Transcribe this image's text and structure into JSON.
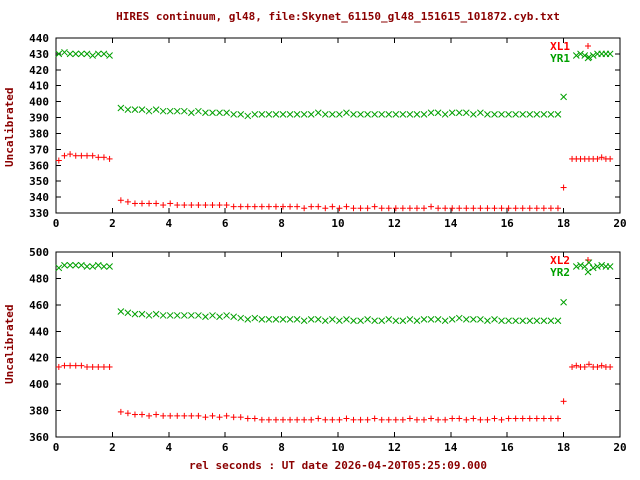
{
  "colors": {
    "background": "#ffffff",
    "text": "#8b0000",
    "tick_text": "#000000",
    "border": "#000000",
    "series_red": "#ff0000",
    "series_green": "#00a000"
  },
  "chart_data": [
    {
      "type": "scatter",
      "title": "HIRES continuum, gl48, file:Skynet_61150_gl48_151615_101872.cyb.txt",
      "ylabel": "Uncalibrated",
      "xlabel": "",
      "xlim": [
        0,
        20
      ],
      "ylim": [
        330,
        440
      ],
      "xticks": [
        0,
        2,
        4,
        6,
        8,
        10,
        12,
        14,
        16,
        18,
        20
      ],
      "yticks": [
        330,
        340,
        350,
        360,
        370,
        380,
        390,
        400,
        410,
        420,
        430,
        440
      ],
      "grid": false,
      "legend_position": "top-right",
      "series": [
        {
          "name": "XL1",
          "marker": "plus",
          "color": "#ff0000",
          "x": [
            0.1,
            0.3,
            0.5,
            0.7,
            0.9,
            1.1,
            1.3,
            1.5,
            1.7,
            1.9,
            2.3,
            2.55,
            2.8,
            3.05,
            3.3,
            3.55,
            3.8,
            4.05,
            4.3,
            4.55,
            4.8,
            5.05,
            5.3,
            5.55,
            5.8,
            6.05,
            6.3,
            6.55,
            6.8,
            7.05,
            7.3,
            7.55,
            7.8,
            8.05,
            8.3,
            8.55,
            8.8,
            9.05,
            9.3,
            9.55,
            9.8,
            10.05,
            10.3,
            10.55,
            10.8,
            11.05,
            11.3,
            11.55,
            11.8,
            12.05,
            12.3,
            12.55,
            12.8,
            13.05,
            13.3,
            13.55,
            13.8,
            14.05,
            14.3,
            14.55,
            14.8,
            15.05,
            15.3,
            15.55,
            15.8,
            16.05,
            16.3,
            16.55,
            16.8,
            17.05,
            17.3,
            17.55,
            17.8,
            18.0,
            18.3,
            18.45,
            18.6,
            18.75,
            18.9,
            19.05,
            19.2,
            19.35,
            19.5,
            19.65
          ],
          "y": [
            363,
            366,
            367,
            366,
            366,
            366,
            366,
            365,
            365,
            364,
            338,
            337,
            336,
            336,
            336,
            336,
            335,
            336,
            335,
            335,
            335,
            335,
            335,
            335,
            335,
            335,
            334,
            334,
            334,
            334,
            334,
            334,
            334,
            334,
            334,
            334,
            333,
            334,
            334,
            333,
            334,
            333,
            334,
            333,
            333,
            333,
            334,
            333,
            333,
            333,
            333,
            333,
            333,
            333,
            334,
            333,
            333,
            333,
            333,
            333,
            333,
            333,
            333,
            333,
            333,
            333,
            333,
            333,
            333,
            333,
            333,
            333,
            333,
            346,
            364,
            364,
            364,
            364,
            364,
            364,
            364,
            365,
            364,
            364
          ]
        },
        {
          "name": "YR1",
          "marker": "cross",
          "color": "#00a000",
          "x": [
            0.1,
            0.3,
            0.5,
            0.7,
            0.9,
            1.1,
            1.3,
            1.5,
            1.7,
            1.9,
            2.3,
            2.55,
            2.8,
            3.05,
            3.3,
            3.55,
            3.8,
            4.05,
            4.3,
            4.55,
            4.8,
            5.05,
            5.3,
            5.55,
            5.8,
            6.05,
            6.3,
            6.55,
            6.8,
            7.05,
            7.3,
            7.55,
            7.8,
            8.05,
            8.3,
            8.55,
            8.8,
            9.05,
            9.3,
            9.55,
            9.8,
            10.05,
            10.3,
            10.55,
            10.8,
            11.05,
            11.3,
            11.55,
            11.8,
            12.05,
            12.3,
            12.55,
            12.8,
            13.05,
            13.3,
            13.55,
            13.8,
            14.05,
            14.3,
            14.55,
            14.8,
            15.05,
            15.3,
            15.55,
            15.8,
            16.05,
            16.3,
            16.55,
            16.8,
            17.05,
            17.3,
            17.55,
            17.8,
            18.0,
            18.45,
            18.6,
            18.75,
            18.9,
            19.05,
            19.2,
            19.35,
            19.5,
            19.65
          ],
          "y": [
            430,
            431,
            430,
            430,
            430,
            430,
            429,
            430,
            430,
            429,
            396,
            395,
            395,
            395,
            394,
            395,
            394,
            394,
            394,
            394,
            393,
            394,
            393,
            393,
            393,
            393,
            392,
            392,
            391,
            392,
            392,
            392,
            392,
            392,
            392,
            392,
            392,
            392,
            393,
            392,
            392,
            392,
            393,
            392,
            392,
            392,
            392,
            392,
            392,
            392,
            392,
            392,
            392,
            392,
            393,
            393,
            392,
            393,
            393,
            393,
            392,
            393,
            392,
            392,
            392,
            392,
            392,
            392,
            392,
            392,
            392,
            392,
            392,
            403,
            429,
            430,
            429,
            428,
            429,
            430,
            430,
            430,
            430
          ]
        }
      ]
    },
    {
      "type": "scatter",
      "title": "",
      "ylabel": "Uncalibrated",
      "xlabel": "rel seconds : UT date 2026-04-20T05:25:09.000",
      "xlim": [
        0,
        20
      ],
      "ylim": [
        360,
        500
      ],
      "xticks": [
        0,
        2,
        4,
        6,
        8,
        10,
        12,
        14,
        16,
        18,
        20
      ],
      "yticks": [
        360,
        380,
        400,
        420,
        440,
        460,
        480,
        500
      ],
      "grid": false,
      "legend_position": "top-right",
      "series": [
        {
          "name": "XL2",
          "marker": "plus",
          "color": "#ff0000",
          "x": [
            0.1,
            0.3,
            0.5,
            0.7,
            0.9,
            1.1,
            1.3,
            1.5,
            1.7,
            1.9,
            2.3,
            2.55,
            2.8,
            3.05,
            3.3,
            3.55,
            3.8,
            4.05,
            4.3,
            4.55,
            4.8,
            5.05,
            5.3,
            5.55,
            5.8,
            6.05,
            6.3,
            6.55,
            6.8,
            7.05,
            7.3,
            7.55,
            7.8,
            8.05,
            8.3,
            8.55,
            8.8,
            9.05,
            9.3,
            9.55,
            9.8,
            10.05,
            10.3,
            10.55,
            10.8,
            11.05,
            11.3,
            11.55,
            11.8,
            12.05,
            12.3,
            12.55,
            12.8,
            13.05,
            13.3,
            13.55,
            13.8,
            14.05,
            14.3,
            14.55,
            14.8,
            15.05,
            15.3,
            15.55,
            15.8,
            16.05,
            16.3,
            16.55,
            16.8,
            17.05,
            17.3,
            17.55,
            17.8,
            18.0,
            18.3,
            18.45,
            18.6,
            18.75,
            18.9,
            19.05,
            19.2,
            19.35,
            19.5,
            19.65
          ],
          "y": [
            413,
            414,
            414,
            414,
            414,
            413,
            413,
            413,
            413,
            413,
            379,
            378,
            377,
            377,
            376,
            377,
            376,
            376,
            376,
            376,
            376,
            376,
            375,
            376,
            375,
            376,
            375,
            375,
            374,
            374,
            373,
            373,
            373,
            373,
            373,
            373,
            373,
            373,
            374,
            373,
            373,
            373,
            374,
            373,
            373,
            373,
            374,
            373,
            373,
            373,
            373,
            374,
            373,
            373,
            374,
            373,
            373,
            374,
            374,
            373,
            374,
            373,
            373,
            374,
            373,
            374,
            374,
            374,
            374,
            374,
            374,
            374,
            374,
            387,
            413,
            414,
            413,
            413,
            415,
            413,
            413,
            414,
            413,
            413
          ]
        },
        {
          "name": "YR2",
          "marker": "cross",
          "color": "#00a000",
          "x": [
            0.1,
            0.3,
            0.5,
            0.7,
            0.9,
            1.1,
            1.3,
            1.5,
            1.7,
            1.9,
            2.3,
            2.55,
            2.8,
            3.05,
            3.3,
            3.55,
            3.8,
            4.05,
            4.3,
            4.55,
            4.8,
            5.05,
            5.3,
            5.55,
            5.8,
            6.05,
            6.3,
            6.55,
            6.8,
            7.05,
            7.3,
            7.55,
            7.8,
            8.05,
            8.3,
            8.55,
            8.8,
            9.05,
            9.3,
            9.55,
            9.8,
            10.05,
            10.3,
            10.55,
            10.8,
            11.05,
            11.3,
            11.55,
            11.8,
            12.05,
            12.3,
            12.55,
            12.8,
            13.05,
            13.3,
            13.55,
            13.8,
            14.05,
            14.3,
            14.55,
            14.8,
            15.05,
            15.3,
            15.55,
            15.8,
            16.05,
            16.3,
            16.55,
            16.8,
            17.05,
            17.3,
            17.55,
            17.8,
            18.0,
            18.45,
            18.6,
            18.75,
            18.9,
            19.05,
            19.2,
            19.35,
            19.5,
            19.65
          ],
          "y": [
            488,
            490,
            490,
            490,
            490,
            489,
            489,
            490,
            489,
            489,
            455,
            454,
            453,
            453,
            452,
            453,
            452,
            452,
            452,
            452,
            452,
            452,
            451,
            452,
            451,
            452,
            451,
            450,
            449,
            450,
            449,
            449,
            449,
            449,
            449,
            449,
            448,
            449,
            449,
            448,
            449,
            448,
            449,
            448,
            448,
            449,
            448,
            448,
            449,
            448,
            448,
            449,
            448,
            449,
            449,
            449,
            448,
            449,
            450,
            449,
            449,
            449,
            448,
            449,
            448,
            448,
            448,
            448,
            448,
            448,
            448,
            448,
            448,
            462,
            489,
            490,
            489,
            492,
            488,
            489,
            490,
            489,
            489
          ]
        }
      ]
    }
  ]
}
